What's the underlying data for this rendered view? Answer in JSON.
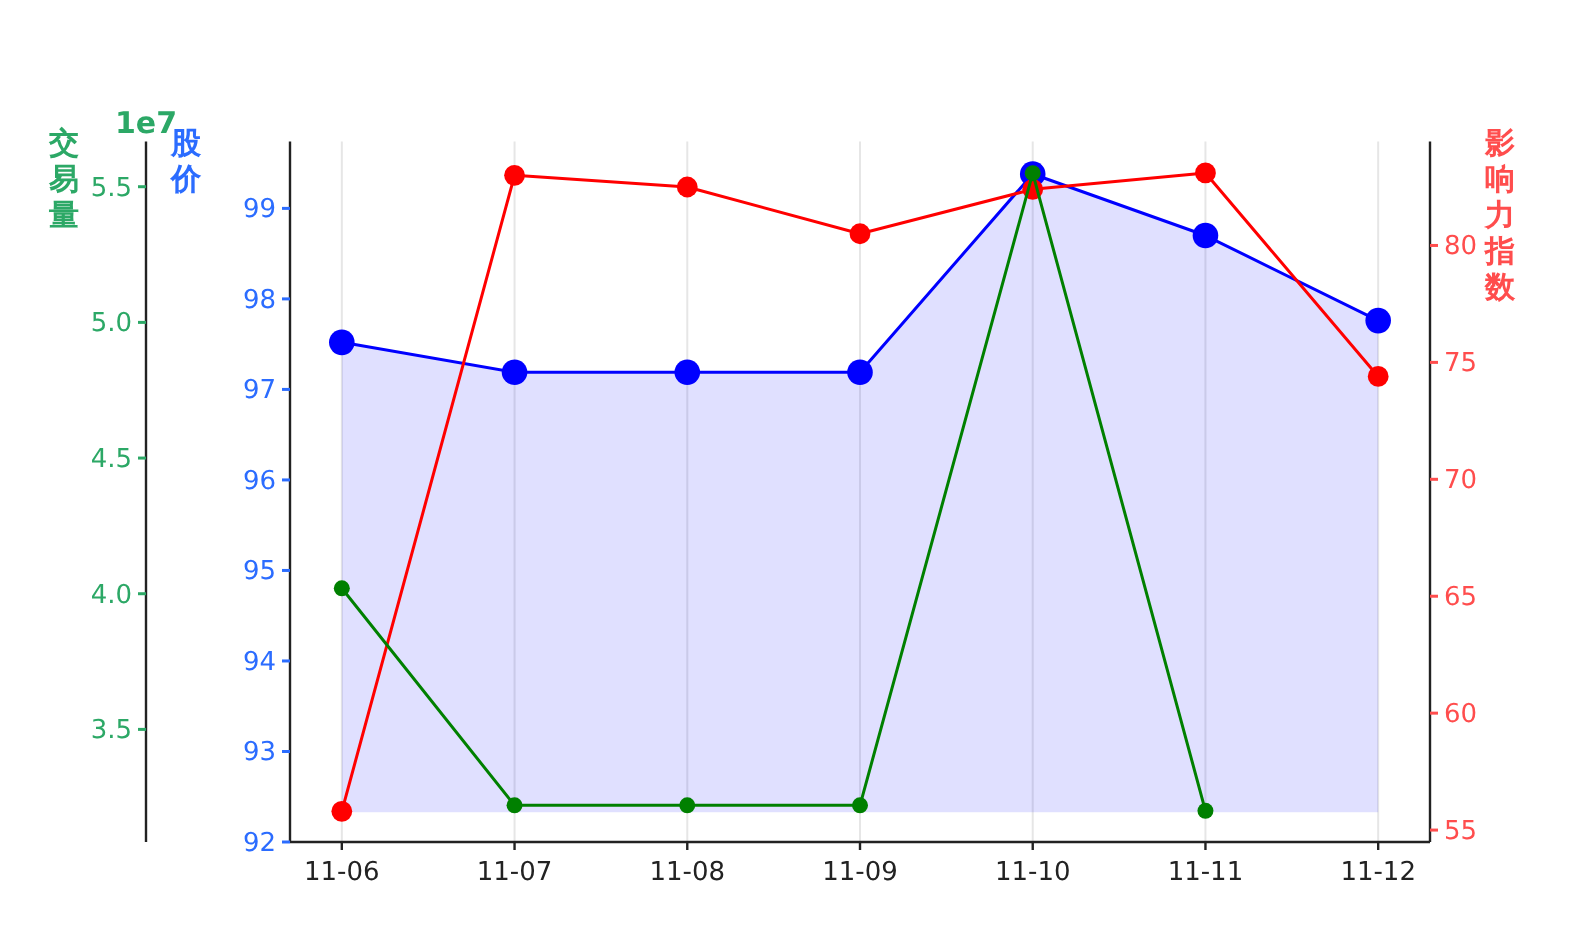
{
  "chart_data": {
    "type": "line",
    "categories": [
      "11-06",
      "11-07",
      "11-08",
      "11-09",
      "11-10",
      "11-11",
      "11-12"
    ],
    "series": [
      {
        "name": null,
        "axis": "y",
        "color": "#0000ff",
        "values": [
          97.52,
          97.19,
          97.19,
          97.19,
          99.38,
          98.7,
          97.76
        ],
        "lower": [
          92.33,
          92.33,
          92.33,
          92.33,
          92.33,
          92.33,
          92.33
        ],
        "upper": [
          97.52,
          97.19,
          97.19,
          97.19,
          99.38,
          98.7,
          97.76
        ]
      },
      {
        "name": null,
        "axis": "y2",
        "color": "#ff0000",
        "values": [
          55.8,
          83.0,
          82.5,
          80.5,
          82.4,
          83.1,
          74.4
        ]
      },
      {
        "name": null,
        "axis": "y3",
        "color": "#008000",
        "values": [
          4.02,
          3.22,
          3.22,
          3.22,
          5.55,
          3.2,
          null
        ]
      }
    ],
    "ylabel": "股价",
    "y2label": "影响力指数",
    "y3label": "交易量",
    "ylim": [
      92,
      99.74
    ],
    "yticks": [
      92,
      93,
      94,
      95,
      96,
      97,
      98,
      99
    ],
    "y2lim": [
      54.49,
      84.45
    ],
    "y2ticks": [
      55,
      60,
      65,
      70,
      75,
      80
    ],
    "y3lim": [
      3.085,
      5.667
    ],
    "y3ticks": [
      {
        "value": 3.5,
        "label": "3.5"
      },
      {
        "value": 4,
        "label": "4.0"
      },
      {
        "value": 4.5,
        "label": "4.5"
      },
      {
        "value": 5,
        "label": "5.0"
      },
      {
        "value": 5.5,
        "label": "5.5"
      }
    ],
    "annotations": [
      "1e7"
    ],
    "grid": "x",
    "marker": "circle",
    "line_style": "solid"
  }
}
